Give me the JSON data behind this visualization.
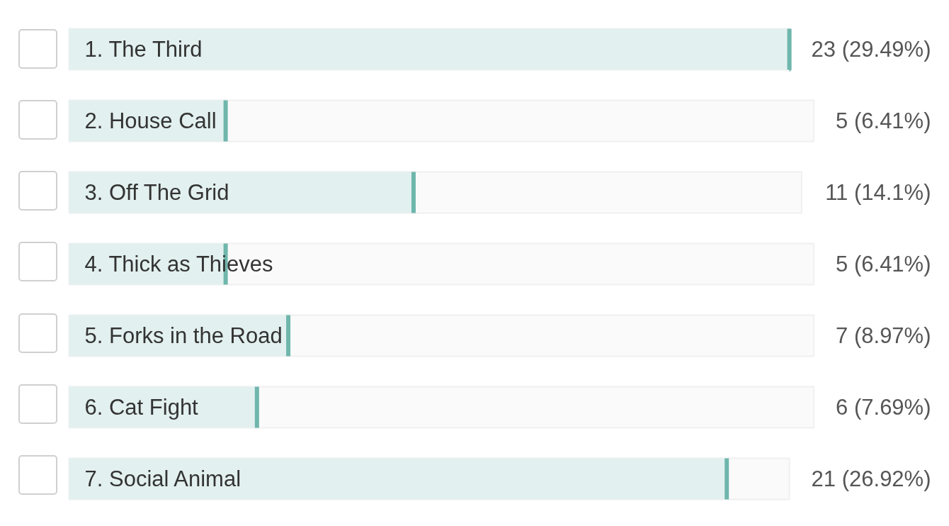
{
  "chart_data": {
    "type": "bar",
    "orientation": "horizontal",
    "categories": [
      "1. The Third",
      "2. House Call",
      "3. Off The Grid",
      "4. Thick as Thieves",
      "5. Forks in the Road",
      "6. Cat Fight",
      "7. Social Animal"
    ],
    "values": [
      23,
      5,
      11,
      5,
      7,
      6,
      21
    ],
    "color": "#e2f0ef",
    "value_labels": [
      "23 (29.49%)",
      "5 (6.41%)",
      "11 (14.1%)",
      "5 (6.41%)",
      "7 (8.97%)",
      "6 (7.69%)",
      "21 (26.92%)"
    ]
  }
}
